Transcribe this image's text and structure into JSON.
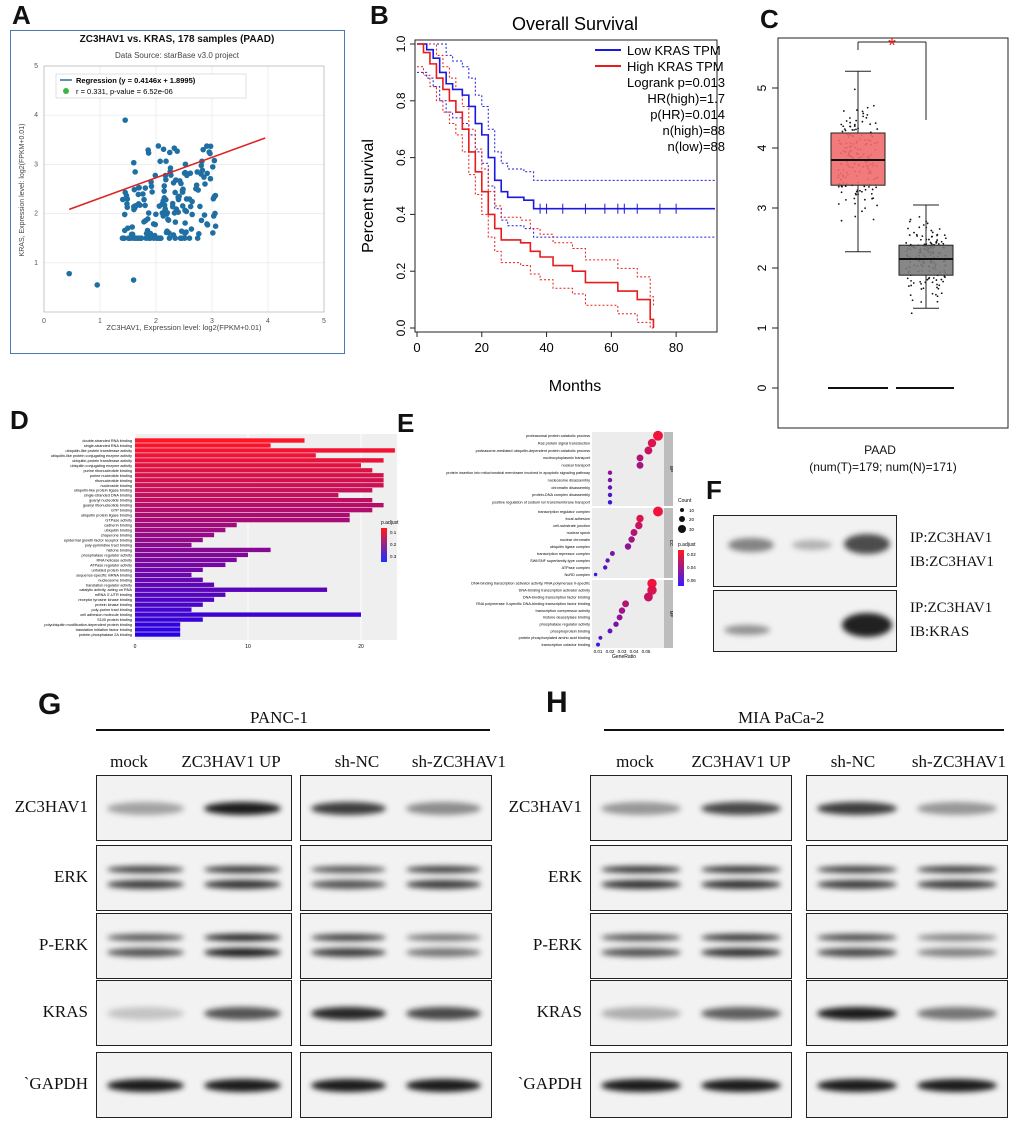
{
  "panels": {
    "A": "A",
    "B": "B",
    "C": "C",
    "D": "D",
    "E": "E",
    "F": "F",
    "G": "G",
    "H": "H"
  },
  "panelA": {
    "title": "ZC3HAV1 vs. KRAS, 178 samples (PAAD)",
    "subtitle": "Data Source: starBase v3.0 project",
    "legend_regression": "Regression (y = 0.4146x + 1.8995)",
    "legend_r": "r = 0.331, p-value = 6.52e-06",
    "xlabel": "ZC3HAV1, Expression level: log2(FPKM+0.01)",
    "ylabel": "KRAS, Expression level: log2(FPKM+0.01)",
    "xticks": [
      "0",
      "1",
      "2",
      "3",
      "4",
      "5"
    ],
    "yticks": [
      "1",
      "2",
      "3",
      "4",
      "5"
    ],
    "colors": {
      "points": "#1f6fa3",
      "line": "#e02020"
    }
  },
  "panelB": {
    "title": "Overall Survival",
    "xlabel": "Months",
    "ylabel": "Percent survival",
    "xticks": [
      "0",
      "20",
      "40",
      "60",
      "80"
    ],
    "yticks": [
      "0.0",
      "0.2",
      "0.4",
      "0.6",
      "0.8",
      "1.0"
    ],
    "legend": [
      "Low KRAS TPM",
      "High KRAS TPM"
    ],
    "stats": [
      "Logrank p=0.013",
      "HR(high)=1.7",
      "p(HR)=0.014",
      "n(high)=88",
      "n(low)=88"
    ],
    "colors": {
      "low": "#1a1adf",
      "high": "#e81c1c"
    }
  },
  "panelC": {
    "yticks": [
      "0",
      "1",
      "2",
      "3",
      "4",
      "5"
    ],
    "xlabel": "PAAD",
    "sublabel": "(num(T)=179; num(N)=171)",
    "star": "*",
    "colors": {
      "tumor": "#f26b6b",
      "normal": "#7a7a7a"
    }
  },
  "panelD": {
    "terms": [
      "double-stranded RNA binding",
      "single-stranded RNA binding",
      "ubiquitin-like protein transferase activity",
      "ubiquitin-like protein conjugating enzyme activity",
      "ubiquitin-protein transferase activity",
      "ubiquitin conjugating enzyme activity",
      "purine ribonucleotide binding",
      "purine nucleotide binding",
      "ribonucleotide binding",
      "nucleoside binding",
      "ubiquitin-like protein ligase binding",
      "single-stranded DNA binding",
      "guanyl nucleotide binding",
      "guanyl ribonucleotide binding",
      "GTP binding",
      "ubiquitin protein ligase binding",
      "GTPase activity",
      "cadherin binding",
      "ubiquitin binding",
      "chaperone binding",
      "epidermal growth factor receptor binding",
      "poly-pyrimidine tract binding",
      "histone binding",
      "phosphatase regulator activity",
      "RNA helicase activity",
      "ATPase regulator activity",
      "unfolded protein binding",
      "sequence-specific mRNA binding",
      "nucleosome binding",
      "translation regulator activity",
      "catalytic activity, acting on RNA",
      "mRNA 3'-UTR binding",
      "receptor tyrosine kinase binding",
      "protein kinase binding",
      "poly-purine tract binding",
      "cell adhesion molecule binding",
      "S100 protein binding",
      "polyubiquitin modification-dependent protein binding",
      "translation initiation factor binding",
      "protein phosphatase 2A binding"
    ],
    "values": [
      15,
      12,
      23,
      16,
      22,
      20,
      21,
      22,
      22,
      22,
      21,
      18,
      21,
      22,
      21,
      19,
      19,
      9,
      8,
      7,
      6,
      5,
      12,
      10,
      9,
      8,
      6,
      5,
      6,
      7,
      17,
      8,
      7,
      6,
      5,
      20,
      6,
      4,
      4,
      4
    ],
    "xticks": [
      "0",
      "10",
      "20"
    ],
    "legend_title": "p.adjust",
    "legend_ticks": [
      "0.1",
      "0.2",
      "0.3"
    ]
  },
  "panelE": {
    "groups": [
      {
        "label": "BP",
        "terms": [
          "proteasomal protein catabolic process",
          "Ras protein signal transduction",
          "proteasome-mediated ubiquitin-dependent protein catabolic process",
          "nucleocytoplasmic transport",
          "nuclear transport",
          "protein insertion into mitochondrial membrane involved in apoptotic signaling pathway",
          "nucleosome disassembly",
          "chromatin disassembly",
          "protein-DNA complex disassembly",
          "positive regulation of sodium ion transmembrane transport"
        ],
        "ratios": [
          0.06,
          0.055,
          0.052,
          0.045,
          0.045,
          0.02,
          0.02,
          0.02,
          0.02,
          0.02
        ],
        "sizes": [
          30,
          24,
          22,
          18,
          18,
          8,
          8,
          8,
          8,
          8
        ]
      },
      {
        "label": "CC",
        "terms": [
          "transcription regulator complex",
          "focal adhesion",
          "cell-substrate junction",
          "nuclear speck",
          "nuclear chromatin",
          "ubiquitin ligase complex",
          "transcription repressor complex",
          "SWI/SNF superfamily-type complex",
          "ATPase complex",
          "NuRD complex"
        ],
        "ratios": [
          0.06,
          0.045,
          0.044,
          0.04,
          0.038,
          0.035,
          0.022,
          0.018,
          0.016,
          0.008
        ],
        "sizes": [
          30,
          20,
          20,
          18,
          16,
          16,
          10,
          8,
          8,
          4
        ]
      },
      {
        "label": "MF",
        "terms": [
          "DNA-binding transcription activator activity, RNA polymerase II-specific",
          "DNA-binding transcription activator activity",
          "DNA-binding transcription factor binding",
          "RNA polymerase II-specific DNA-binding transcription factor binding",
          "transcription corepressor activity",
          "histone deacetylase binding",
          "phosphatase regulator activity",
          "phosphoprotein binding",
          "protein phosphorylated amino acid binding",
          "transcription cofactor binding"
        ],
        "ratios": [
          0.055,
          0.055,
          0.052,
          0.033,
          0.03,
          0.028,
          0.025,
          0.02,
          0.012,
          0.01
        ],
        "sizes": [
          28,
          28,
          26,
          18,
          16,
          14,
          12,
          10,
          6,
          6
        ]
      }
    ],
    "xticks": [
      "0.01",
      "0.02",
      "0.03",
      "0.04",
      "0.05"
    ],
    "xlabel": "GeneRatio",
    "count_title": "Count",
    "count_ticks": [
      "10",
      "20",
      "30"
    ],
    "padj_title": "p.adjust",
    "padj_ticks": [
      "0.02",
      "0.04",
      "0.06"
    ]
  },
  "panelF": {
    "blot1": [
      "IP:ZC3HAV1",
      "IB:ZC3HAV1"
    ],
    "blot2": [
      "IP:ZC3HAV1",
      "IB:KRAS"
    ]
  },
  "panelG": {
    "cell_line": "PANC-1",
    "lanes": [
      "mock",
      "ZC3HAV1 UP",
      "sh-NC",
      "sh-ZC3HAV1"
    ],
    "rows": [
      "ZC3HAV1",
      "ERK",
      "P-ERK",
      "KRAS",
      "`GAPDH"
    ]
  },
  "panelH": {
    "cell_line": "MIA PaCa-2",
    "lanes": [
      "mock",
      "ZC3HAV1 UP",
      "sh-NC",
      "sh-ZC3HAV1"
    ],
    "rows": [
      "ZC3HAV1",
      "ERK",
      "P-ERK",
      "KRAS",
      "`GAPDH"
    ]
  }
}
